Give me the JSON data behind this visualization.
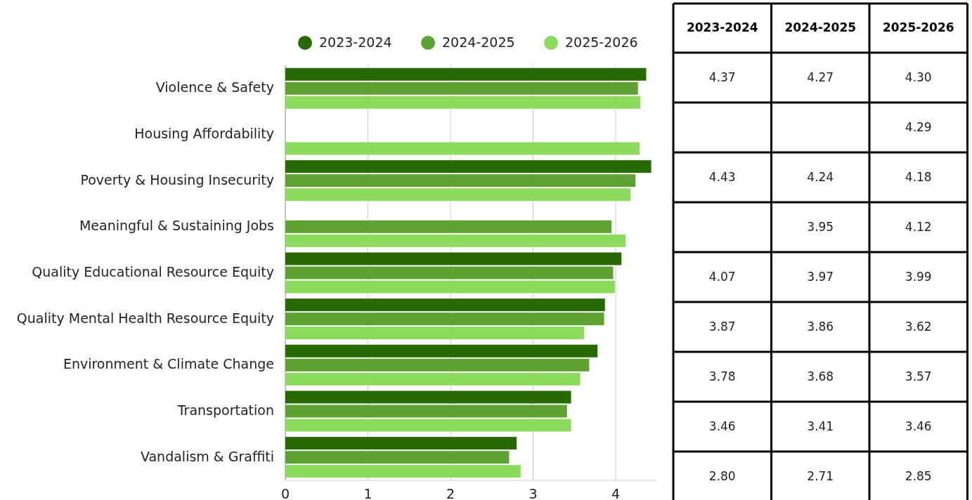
{
  "chart_data": {
    "type": "bar",
    "orientation": "horizontal",
    "categories": [
      "Violence & Safety",
      "Housing Affordability",
      "Poverty & Housing Insecurity",
      "Meaningful & Sustaining Jobs",
      "Quality Educational Resource Equity",
      "Quality Mental Health Resource Equity",
      "Environment & Climate Change",
      "Transportation",
      "Vandalism & Graffiti"
    ],
    "series": [
      {
        "name": "2023-2024",
        "color": "#266a00",
        "values": [
          4.37,
          null,
          4.43,
          null,
          4.07,
          3.87,
          3.78,
          3.46,
          2.8
        ],
        "value_labels": [
          "4.37",
          null,
          "4.43",
          null,
          "4.07",
          "3.87",
          "3.78",
          "3.46",
          "2.80"
        ]
      },
      {
        "name": "2024-2025",
        "color": "#5ea233",
        "values": [
          4.27,
          null,
          4.24,
          3.95,
          3.97,
          3.86,
          3.68,
          3.41,
          2.71
        ],
        "value_labels": [
          "4.27",
          null,
          "4.24",
          "3.95",
          "3.97",
          "3.86",
          "3.68",
          "3.41",
          "2.71"
        ]
      },
      {
        "name": "2025-2026",
        "color": "#8cdb5e",
        "values": [
          4.3,
          4.29,
          4.18,
          4.12,
          3.99,
          3.62,
          3.57,
          3.46,
          2.85
        ],
        "value_labels": [
          "4.30",
          "4.29",
          "4.18",
          "4.12",
          "3.99",
          "3.62",
          "3.57",
          "3.46",
          "2.85"
        ]
      }
    ],
    "xlim": [
      0,
      4.5
    ],
    "xticks": [
      0,
      1,
      2,
      3,
      4
    ],
    "grid": "x",
    "legend": "top"
  }
}
